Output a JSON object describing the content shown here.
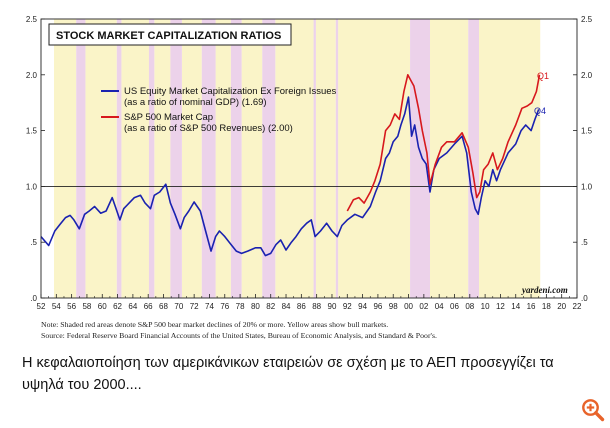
{
  "chart_data": {
    "type": "line",
    "title": "STOCK MARKET CAPITALIZATION RATIOS",
    "xlabel": "",
    "ylabel": "",
    "xlim": [
      1952,
      2022
    ],
    "ylim": [
      0,
      2.5
    ],
    "x_ticks": [
      "52",
      "54",
      "56",
      "58",
      "60",
      "62",
      "64",
      "66",
      "68",
      "70",
      "72",
      "74",
      "76",
      "78",
      "80",
      "82",
      "84",
      "86",
      "88",
      "90",
      "92",
      "94",
      "96",
      "98",
      "00",
      "02",
      "04",
      "06",
      "08",
      "10",
      "12",
      "14",
      "16",
      "18",
      "20",
      "22"
    ],
    "y_ticks": [
      ".0",
      ".5",
      "1.0",
      "1.5",
      "2.0",
      "2.5"
    ],
    "reference_line": 1.0,
    "series": [
      {
        "name": "US Equity Market Capitalization Ex Foreign Issues",
        "legend_line2": "(as a ratio of nominal GDP) (1.69)",
        "color": "#1a22b0",
        "end_label": "Q4",
        "x": [
          1952,
          1953,
          1953.8,
          1954.5,
          1955.2,
          1955.8,
          1956.3,
          1957,
          1957.7,
          1958.3,
          1959,
          1959.8,
          1960.5,
          1961.3,
          1961.7,
          1962.3,
          1962.8,
          1963.5,
          1964.2,
          1965,
          1965.6,
          1966.3,
          1966.8,
          1967.5,
          1968.3,
          1968.9,
          1969.5,
          1970.2,
          1970.7,
          1971.3,
          1972,
          1972.8,
          1973.5,
          1974.2,
          1974.8,
          1975.3,
          1976,
          1976.8,
          1977.5,
          1978.2,
          1979,
          1980,
          1980.7,
          1981.3,
          1982,
          1982.7,
          1983.3,
          1984,
          1984.7,
          1985.3,
          1986,
          1986.7,
          1987.3,
          1987.8,
          1988.5,
          1989.3,
          1990,
          1990.7,
          1991.3,
          1992,
          1993,
          1994,
          1995,
          1995.7,
          1996.3,
          1997,
          1997.5,
          1998,
          1998.6,
          1999,
          1999.5,
          2000,
          2000.4,
          2000.8,
          2001.3,
          2001.8,
          2002.3,
          2002.8,
          2003.3,
          2004,
          2005,
          2006,
          2007,
          2007.6,
          2008.2,
          2008.7,
          2009.1,
          2009.5,
          2010,
          2010.5,
          2011,
          2011.5,
          2012,
          2013,
          2014,
          2014.7,
          2015.3,
          2016,
          2016.5,
          2017
        ],
        "values": [
          0.55,
          0.47,
          0.6,
          0.66,
          0.72,
          0.74,
          0.7,
          0.62,
          0.75,
          0.78,
          0.82,
          0.76,
          0.78,
          0.9,
          0.82,
          0.7,
          0.8,
          0.85,
          0.9,
          0.92,
          0.85,
          0.8,
          0.92,
          0.95,
          1.02,
          0.85,
          0.75,
          0.62,
          0.72,
          0.78,
          0.86,
          0.78,
          0.6,
          0.42,
          0.55,
          0.6,
          0.55,
          0.48,
          0.42,
          0.4,
          0.42,
          0.45,
          0.45,
          0.38,
          0.4,
          0.48,
          0.52,
          0.43,
          0.5,
          0.55,
          0.62,
          0.67,
          0.7,
          0.55,
          0.6,
          0.67,
          0.6,
          0.55,
          0.65,
          0.7,
          0.75,
          0.72,
          0.82,
          0.95,
          1.05,
          1.25,
          1.3,
          1.4,
          1.45,
          1.55,
          1.65,
          1.8,
          1.45,
          1.55,
          1.35,
          1.25,
          1.2,
          0.95,
          1.15,
          1.25,
          1.3,
          1.38,
          1.45,
          1.3,
          0.95,
          0.8,
          0.75,
          0.9,
          1.05,
          1.0,
          1.15,
          1.05,
          1.15,
          1.3,
          1.38,
          1.5,
          1.55,
          1.5,
          1.6,
          1.69
        ]
      },
      {
        "name": "S&P 500 Market Cap",
        "legend_line2": "(as a ratio of S&P 500 Revenues) (2.00)",
        "color": "#d7181d",
        "end_label": "Q1",
        "x": [
          1992,
          1992.8,
          1993.5,
          1994.2,
          1995,
          1995.6,
          1996.3,
          1997,
          1997.6,
          1998.2,
          1998.8,
          1999.4,
          1999.9,
          2000.3,
          2000.7,
          2001.3,
          2001.8,
          2002.4,
          2002.8,
          2003.5,
          2004.3,
          2005,
          2006,
          2007,
          2007.8,
          2008.4,
          2008.9,
          2009.3,
          2009.8,
          2010.4,
          2011,
          2011.6,
          2012.3,
          2013,
          2014,
          2014.8,
          2015.5,
          2016.1,
          2016.7,
          2017.1
        ],
        "values": [
          0.78,
          0.88,
          0.9,
          0.85,
          0.95,
          1.05,
          1.2,
          1.5,
          1.55,
          1.65,
          1.6,
          1.85,
          2.0,
          1.95,
          1.9,
          1.7,
          1.5,
          1.3,
          1.02,
          1.2,
          1.35,
          1.4,
          1.4,
          1.48,
          1.35,
          1.12,
          0.9,
          0.95,
          1.15,
          1.2,
          1.3,
          1.15,
          1.25,
          1.4,
          1.55,
          1.7,
          1.72,
          1.75,
          1.85,
          2.0
        ]
      }
    ],
    "legend_position": "top-left",
    "bear_markets": [
      [
        1956.6,
        1957.8
      ],
      [
        1961.9,
        1962.5
      ],
      [
        1966.1,
        1966.8
      ],
      [
        1968.9,
        1970.4
      ],
      [
        1973.0,
        1974.8
      ],
      [
        1976.8,
        1978.2
      ],
      [
        1980.9,
        1982.6
      ],
      [
        1987.6,
        1987.9
      ],
      [
        1990.5,
        1990.8
      ],
      [
        2000.2,
        2002.8
      ],
      [
        2007.8,
        2009.2
      ]
    ],
    "bull_markets": [
      [
        1953.7,
        1956.6
      ],
      [
        1957.8,
        1961.9
      ],
      [
        1962.5,
        1966.1
      ],
      [
        1966.8,
        1968.9
      ],
      [
        1970.4,
        1973.0
      ],
      [
        1974.8,
        1976.8
      ],
      [
        1978.2,
        1980.9
      ],
      [
        1982.6,
        1987.6
      ],
      [
        1987.9,
        1990.5
      ],
      [
        1990.8,
        2000.2
      ],
      [
        2002.8,
        2007.8
      ],
      [
        2009.2,
        2017.2
      ]
    ]
  },
  "watermark": "yardeni.com",
  "footnote_1": "Note: Shaded red areas denote S&P 500 bear market declines of 20% or more. Yellow areas show bull markets.",
  "footnote_2": "Source: Federal Reserve Board Financial Accounts of the United States, Bureau of Economic Analysis, and Standard & Poor's.",
  "caption": "Η κεφαλαιοποίηση των αμερικάνικων εταιρειών σε σχέση με το ΑΕΠ προσεγγίζει τα υψηλά του 2000....",
  "colors": {
    "bull": "#faf4c8",
    "bear": "#ecd2ea",
    "plot_bg": "#ffffff"
  }
}
